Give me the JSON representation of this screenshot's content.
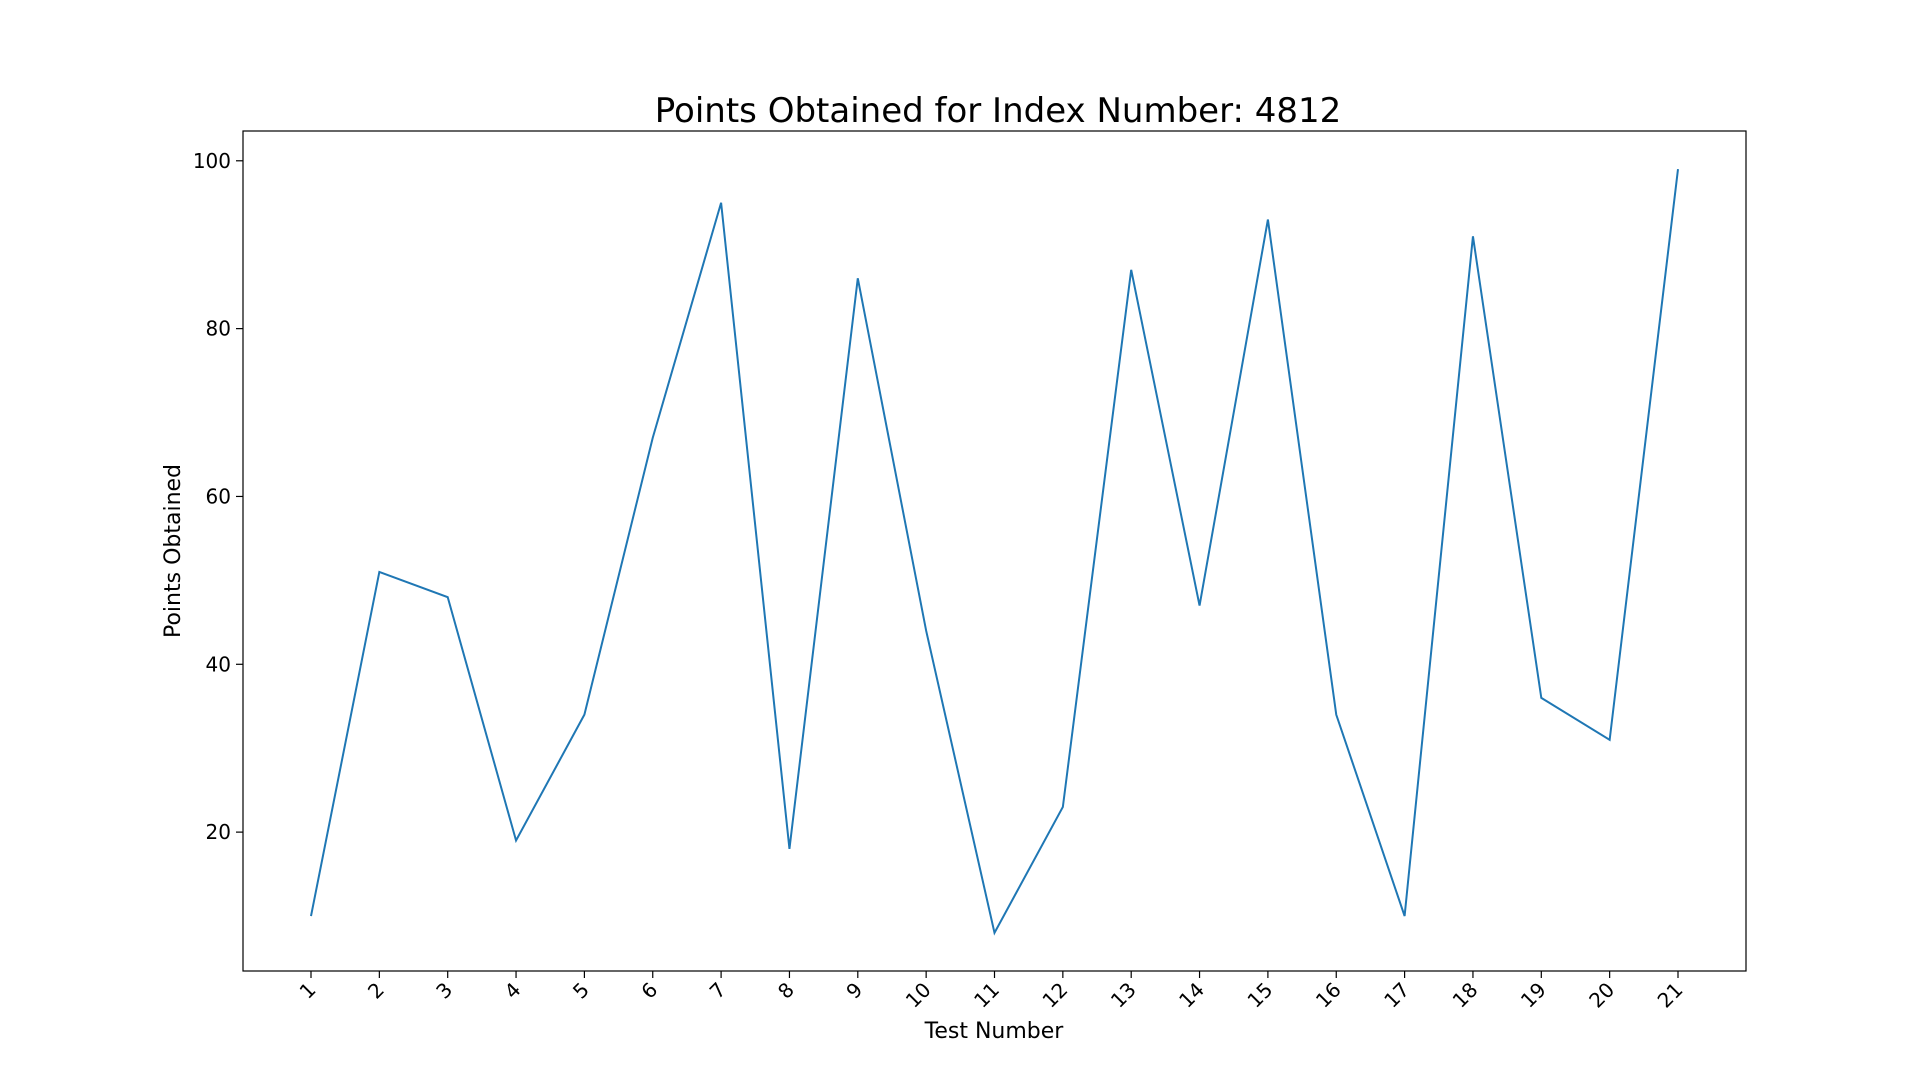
{
  "chart_data": {
    "type": "line",
    "title": "Points Obtained for Index Number: 4812",
    "xlabel": "Test Number",
    "ylabel": "Points Obtained",
    "categories": [
      "1",
      "2",
      "3",
      "4",
      "5",
      "6",
      "7",
      "8",
      "9",
      "10",
      "11",
      "12",
      "13",
      "14",
      "15",
      "16",
      "17",
      "18",
      "19",
      "20",
      "21"
    ],
    "series": [
      {
        "values": [
          10,
          51,
          48,
          19,
          34,
          67,
          95,
          18,
          86,
          44,
          8,
          23,
          87,
          47,
          93,
          34,
          10,
          91,
          36,
          31,
          99
        ]
      }
    ],
    "yticks": [
      20,
      40,
      60,
      80,
      100
    ],
    "ylim": [
      3.45,
      103.55
    ],
    "grid": false,
    "legend": "none",
    "xtick_rotation": 45,
    "line_color": "#1f77b4"
  }
}
